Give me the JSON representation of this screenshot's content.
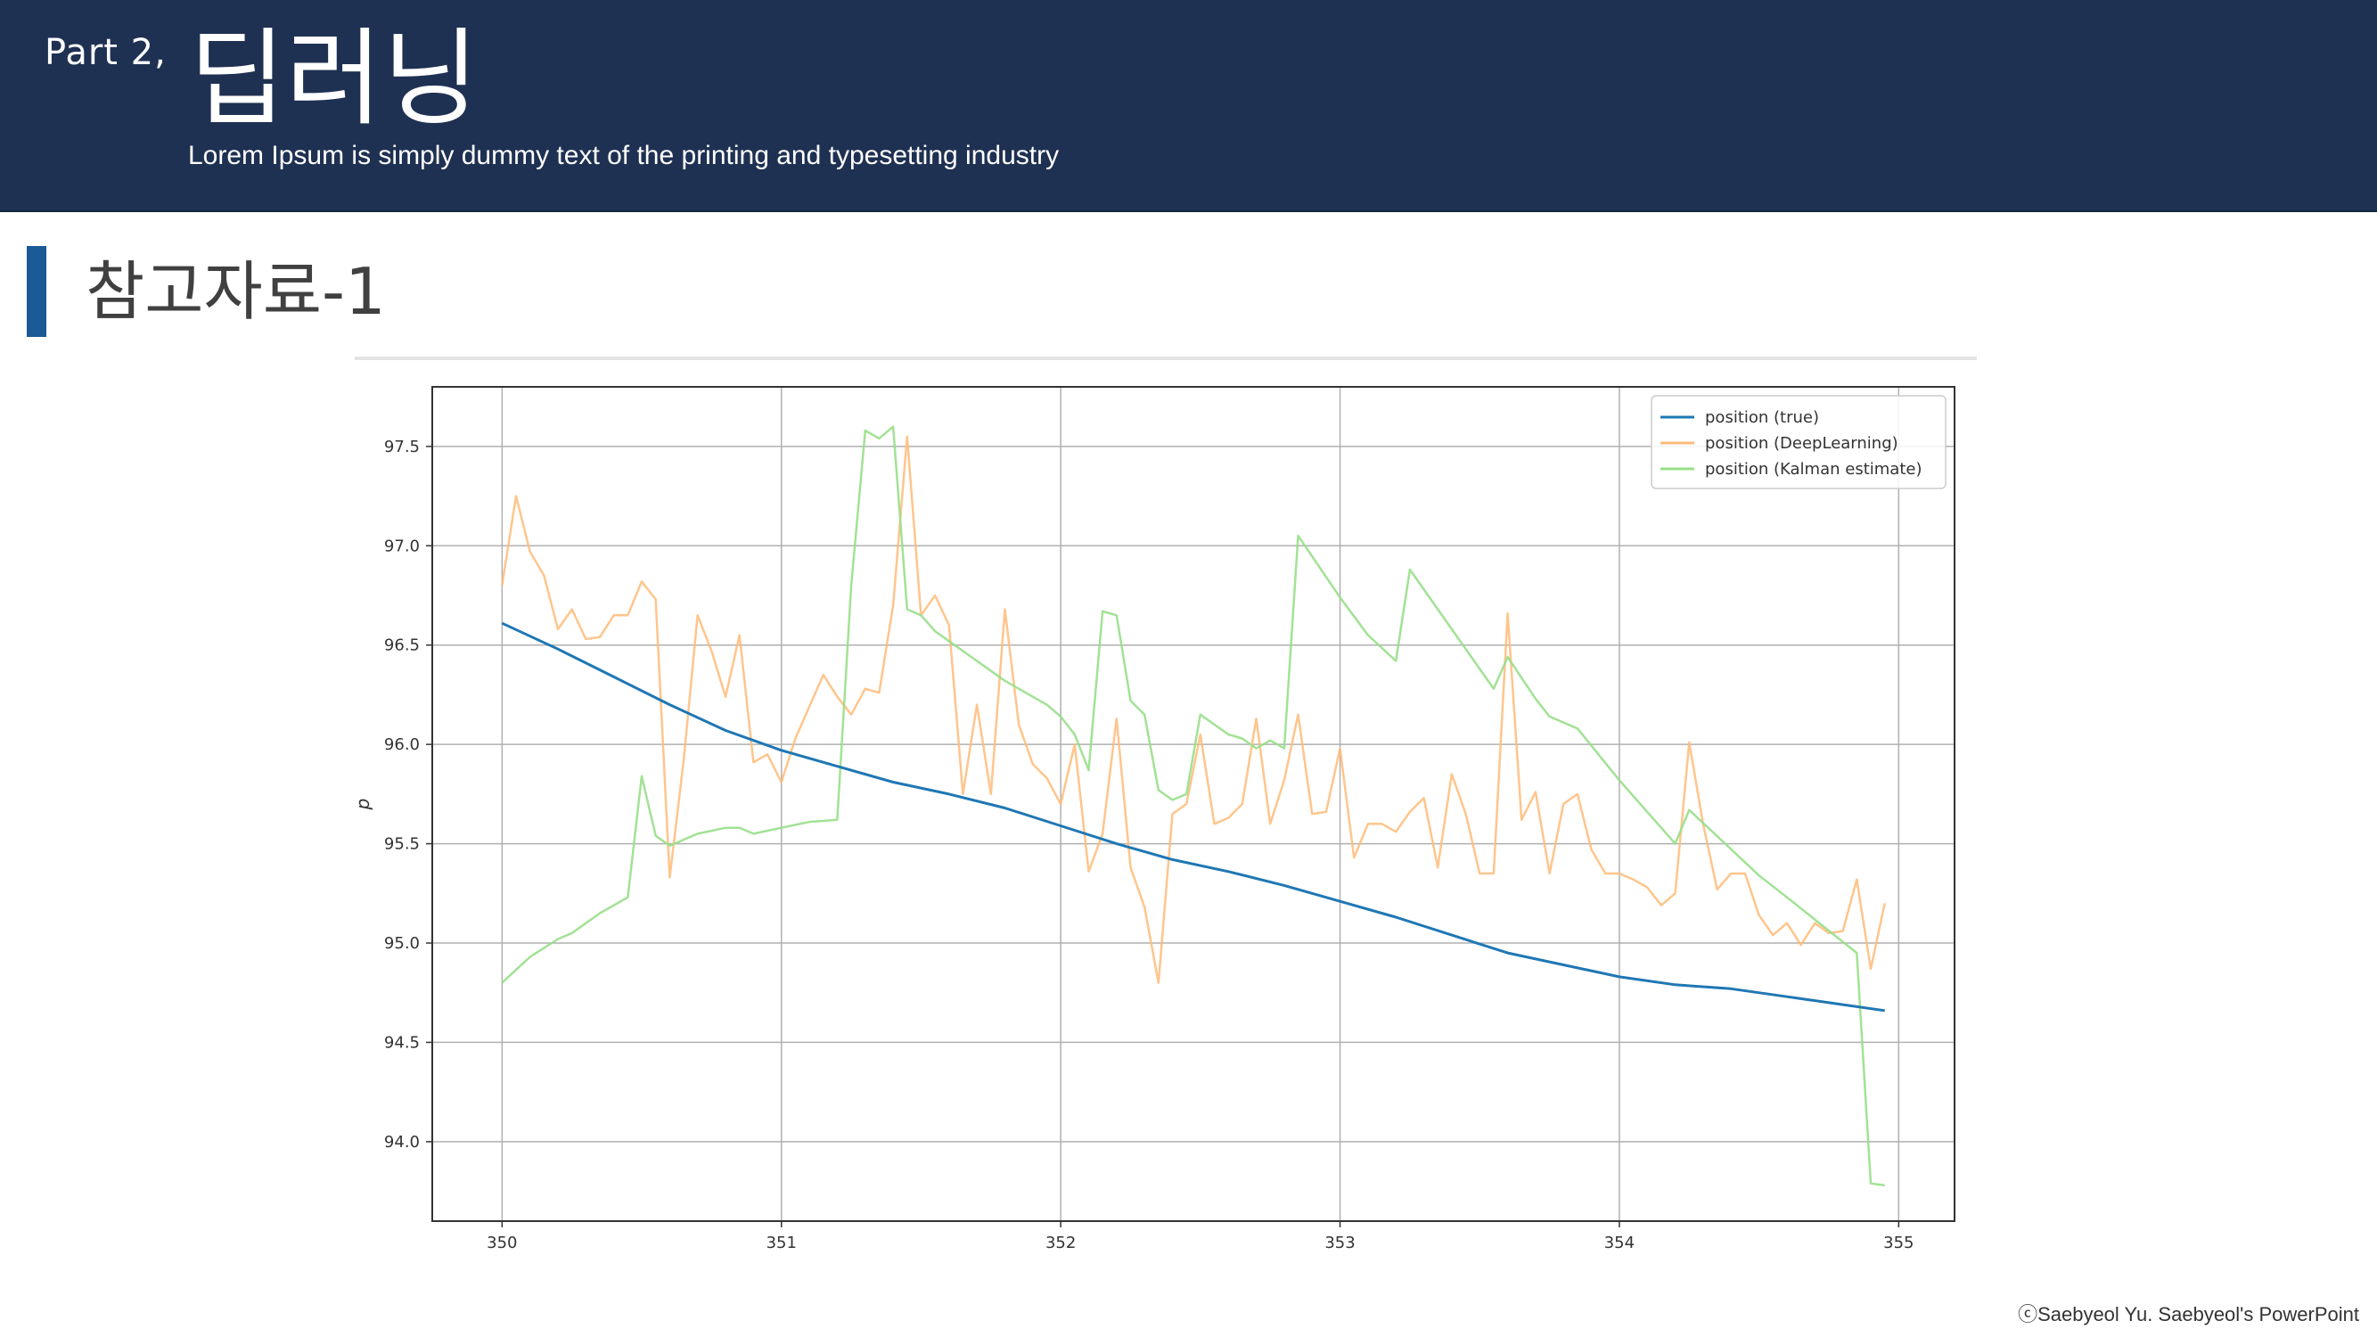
{
  "header": {
    "part": "Part 2,",
    "title": "딥러닝",
    "subtitle": "Lorem Ipsum is simply dummy text of the printing and typesetting industry"
  },
  "section": {
    "title": "참고자료-1"
  },
  "footer": {
    "copyright": "ⓒSaebyeol Yu. Saebyeol's PowerPoint"
  },
  "colors": {
    "header_bg": "#1f3152",
    "section_bar": "#1a5a96",
    "series_true": "#1f77b4",
    "series_deep": "#ffbb78",
    "series_kalman": "#98df8a"
  },
  "chart_data": {
    "type": "line",
    "title": "",
    "xlabel": "",
    "ylabel": "p",
    "xlim": [
      349.75,
      355.2
    ],
    "ylim": [
      93.6,
      97.8
    ],
    "grid": true,
    "legend_position": "top-right",
    "xticks": [
      350,
      351,
      352,
      353,
      354,
      355
    ],
    "yticks": [
      94.0,
      94.5,
      95.0,
      95.5,
      96.0,
      96.5,
      97.0,
      97.5
    ],
    "series": [
      {
        "name": "position (true)",
        "color": "#1f77b4",
        "opacity": 1.0,
        "x": [
          350.0,
          350.2,
          350.4,
          350.6,
          350.8,
          351.0,
          351.2,
          351.4,
          351.6,
          351.8,
          352.0,
          352.2,
          352.4,
          352.6,
          352.8,
          353.0,
          353.2,
          353.4,
          353.6,
          353.8,
          354.0,
          354.2,
          354.4,
          354.6,
          354.8,
          354.95
        ],
        "y": [
          96.61,
          96.48,
          96.34,
          96.2,
          96.07,
          95.97,
          95.89,
          95.81,
          95.75,
          95.68,
          95.59,
          95.5,
          95.42,
          95.36,
          95.29,
          95.21,
          95.13,
          95.04,
          94.95,
          94.89,
          94.83,
          94.79,
          94.77,
          94.73,
          94.69,
          94.66
        ]
      },
      {
        "name": "position (DeepLearning)",
        "color": "#ffbb78",
        "opacity": 0.85,
        "x": [
          350.0,
          350.05,
          350.1,
          350.15,
          350.2,
          350.25,
          350.3,
          350.35,
          350.4,
          350.45,
          350.5,
          350.55,
          350.6,
          350.65,
          350.7,
          350.75,
          350.8,
          350.85,
          350.9,
          350.95,
          351.0,
          351.05,
          351.1,
          351.15,
          351.2,
          351.25,
          351.3,
          351.35,
          351.4,
          351.45,
          351.5,
          351.55,
          351.6,
          351.65,
          351.7,
          351.75,
          351.8,
          351.85,
          351.9,
          351.95,
          352.0,
          352.05,
          352.1,
          352.15,
          352.2,
          352.25,
          352.3,
          352.35,
          352.4,
          352.45,
          352.5,
          352.55,
          352.6,
          352.65,
          352.7,
          352.75,
          352.8,
          352.85,
          352.9,
          352.95,
          353.0,
          353.05,
          353.1,
          353.15,
          353.2,
          353.25,
          353.3,
          353.35,
          353.4,
          353.45,
          353.5,
          353.55,
          353.6,
          353.65,
          353.7,
          353.75,
          353.8,
          353.85,
          353.9,
          353.95,
          354.0,
          354.05,
          354.1,
          354.15,
          354.2,
          354.25,
          354.3,
          354.35,
          354.4,
          354.45,
          354.5,
          354.55,
          354.6,
          354.65,
          354.7,
          354.75,
          354.8,
          354.85,
          354.9,
          354.95
        ],
        "y": [
          96.8,
          97.25,
          96.97,
          96.85,
          96.58,
          96.68,
          96.53,
          96.54,
          96.65,
          96.65,
          96.82,
          96.73,
          95.33,
          95.92,
          96.65,
          96.47,
          96.24,
          96.55,
          95.91,
          95.95,
          95.81,
          96.03,
          96.19,
          96.35,
          96.24,
          96.15,
          96.28,
          96.26,
          96.7,
          97.55,
          96.65,
          96.75,
          96.6,
          95.75,
          96.2,
          95.75,
          96.68,
          96.1,
          95.9,
          95.83,
          95.7,
          96.0,
          95.36,
          95.55,
          96.13,
          95.38,
          95.18,
          94.8,
          95.65,
          95.7,
          96.05,
          95.6,
          95.63,
          95.7,
          96.13,
          95.6,
          95.82,
          96.15,
          95.65,
          95.66,
          95.98,
          95.43,
          95.6,
          95.6,
          95.56,
          95.66,
          95.73,
          95.38,
          95.85,
          95.65,
          95.35,
          95.35,
          96.66,
          95.62,
          95.76,
          95.35,
          95.7,
          95.75,
          95.47,
          95.35,
          95.35,
          95.32,
          95.28,
          95.19,
          95.25,
          96.01,
          95.6,
          95.27,
          95.35,
          95.35,
          95.14,
          95.04,
          95.1,
          94.99,
          95.1,
          95.05,
          95.06,
          95.32,
          94.87,
          95.2
        ]
      },
      {
        "name": "position (Kalman estimate)",
        "color": "#98df8a",
        "opacity": 0.9,
        "x": [
          350.0,
          350.1,
          350.2,
          350.25,
          350.3,
          350.35,
          350.45,
          350.5,
          350.55,
          350.6,
          350.7,
          350.8,
          350.85,
          350.9,
          351.0,
          351.1,
          351.2,
          351.25,
          351.3,
          351.35,
          351.4,
          351.45,
          351.5,
          351.55,
          351.6,
          351.65,
          351.7,
          351.75,
          351.8,
          351.85,
          351.9,
          351.95,
          352.0,
          352.05,
          352.1,
          352.15,
          352.2,
          352.25,
          352.3,
          352.35,
          352.4,
          352.45,
          352.5,
          352.55,
          352.6,
          352.65,
          352.7,
          352.75,
          352.8,
          352.85,
          353.0,
          353.1,
          353.2,
          353.25,
          353.4,
          353.55,
          353.6,
          353.7,
          353.75,
          353.85,
          354.0,
          354.2,
          354.25,
          354.5,
          354.6,
          354.85,
          354.9,
          354.95
        ],
        "y": [
          94.8,
          94.93,
          95.02,
          95.05,
          95.1,
          95.15,
          95.23,
          95.84,
          95.54,
          95.49,
          95.55,
          95.58,
          95.58,
          95.55,
          95.58,
          95.61,
          95.62,
          96.8,
          97.58,
          97.54,
          97.6,
          96.68,
          96.65,
          96.57,
          96.52,
          96.47,
          96.42,
          96.37,
          96.32,
          96.28,
          96.24,
          96.2,
          96.14,
          96.05,
          95.87,
          96.67,
          96.65,
          96.22,
          96.15,
          95.77,
          95.72,
          95.75,
          96.15,
          96.1,
          96.05,
          96.03,
          95.98,
          96.02,
          95.98,
          97.05,
          96.74,
          96.55,
          96.42,
          96.88,
          96.58,
          96.28,
          96.44,
          96.23,
          96.14,
          96.08,
          95.82,
          95.5,
          95.67,
          95.34,
          95.23,
          94.95,
          93.79,
          93.78
        ]
      }
    ]
  }
}
